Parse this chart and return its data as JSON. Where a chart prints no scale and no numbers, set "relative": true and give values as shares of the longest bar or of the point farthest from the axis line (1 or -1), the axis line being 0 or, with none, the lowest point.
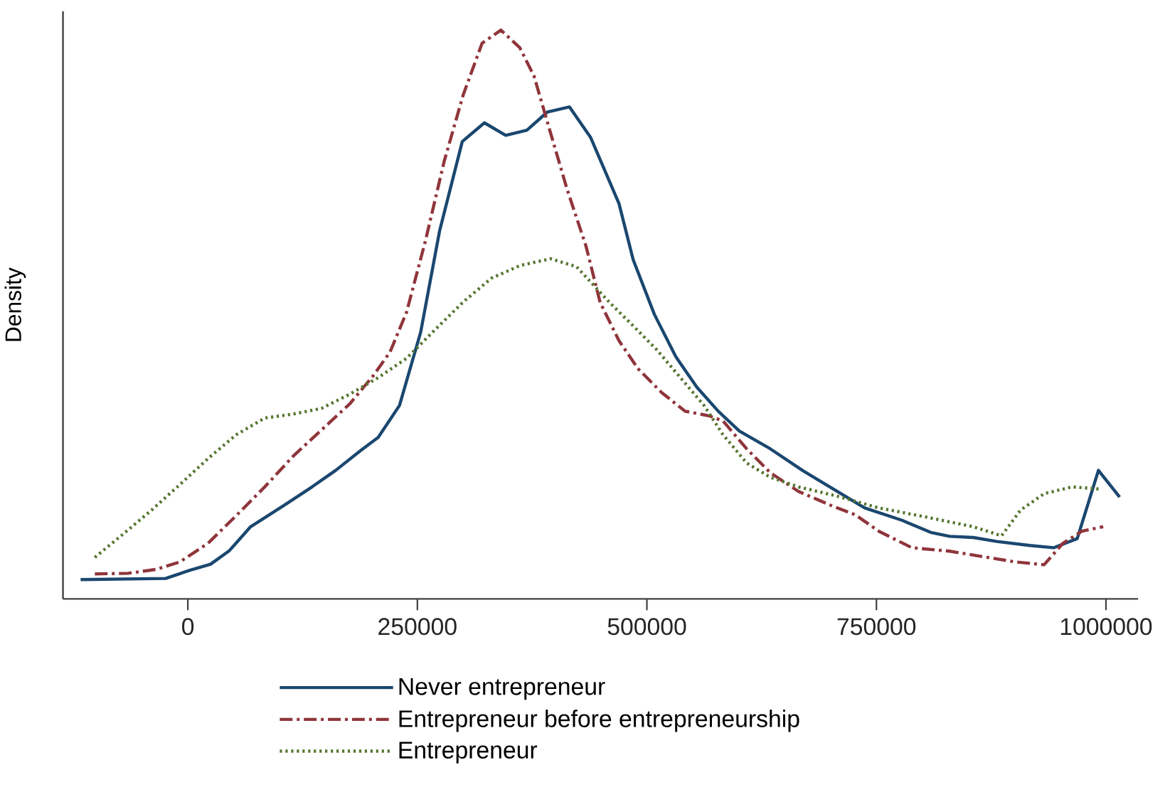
{
  "chart_data": {
    "type": "line",
    "ylabel": "Density",
    "relative": true,
    "xlim": [
      -136000,
      1035000
    ],
    "xticks": [
      0,
      250000,
      500000,
      750000,
      1000000
    ],
    "legend": "bottom",
    "series": [
      {
        "name": "Never entrepreneur",
        "color": "#1a476f",
        "line_style": "solid",
        "x": [
          -116800,
          -24200,
          1500,
          24700,
          45300,
          68400,
          104400,
          135300,
          161000,
          186700,
          207300,
          230500,
          253600,
          274200,
          298900,
          323000,
          346200,
          369300,
          391500,
          415600,
          438800,
          469600,
          485100,
          508200,
          531400,
          554500,
          577700,
          600800,
          634300,
          670300,
          696000,
          737100,
          778300,
          809100,
          829700,
          855400,
          881200,
          917200,
          942900,
          968700,
          991800,
          1014900
        ],
        "values": [
          0.034,
          0.036,
          0.05,
          0.061,
          0.085,
          0.127,
          0.164,
          0.197,
          0.226,
          0.259,
          0.284,
          0.34,
          0.469,
          0.647,
          0.804,
          0.837,
          0.815,
          0.824,
          0.856,
          0.865,
          0.811,
          0.695,
          0.596,
          0.5,
          0.426,
          0.372,
          0.33,
          0.295,
          0.264,
          0.225,
          0.2,
          0.16,
          0.138,
          0.117,
          0.11,
          0.108,
          0.101,
          0.094,
          0.09,
          0.106,
          0.226,
          0.179
        ]
      },
      {
        "name": "Entrepreneur before entrepreneurship",
        "color": "#90353b",
        "line_style": "dashdot",
        "x": [
          -101300,
          -65300,
          -34500,
          -8700,
          22100,
          53000,
          83800,
          114700,
          145600,
          176400,
          202200,
          220200,
          238200,
          258700,
          279300,
          299900,
          320500,
          341000,
          361600,
          377100,
          395100,
          413100,
          433700,
          449100,
          469600,
          490200,
          515900,
          541600,
          567400,
          582800,
          608600,
          634300,
          665100,
          701100,
          726900,
          752600,
          788600,
          829700,
          870900,
          901700,
          932600,
          953200,
          973800,
          997000
        ],
        "values": [
          0.044,
          0.045,
          0.052,
          0.065,
          0.098,
          0.147,
          0.197,
          0.251,
          0.297,
          0.343,
          0.393,
          0.434,
          0.504,
          0.629,
          0.77,
          0.886,
          0.977,
          1.0,
          0.969,
          0.919,
          0.819,
          0.72,
          0.62,
          0.521,
          0.454,
          0.405,
          0.363,
          0.33,
          0.322,
          0.313,
          0.264,
          0.222,
          0.189,
          0.164,
          0.148,
          0.119,
          0.09,
          0.084,
          0.073,
          0.065,
          0.06,
          0.098,
          0.119,
          0.127
        ]
      },
      {
        "name": "Entrepreneur",
        "color": "#55752f",
        "line_style": "dotted",
        "x": [
          -101300,
          -70500,
          -39600,
          -8700,
          22100,
          53000,
          83800,
          114700,
          145600,
          176400,
          207300,
          238200,
          269100,
          299900,
          330800,
          361600,
          395100,
          423400,
          459400,
          485100,
          510800,
          536500,
          562300,
          582800,
          608600,
          634300,
          665100,
          706300,
          752600,
          804000,
          855400,
          886300,
          906900,
          932600,
          963400,
          994300
        ],
        "values": [
          0.073,
          0.114,
          0.156,
          0.201,
          0.247,
          0.289,
          0.318,
          0.325,
          0.335,
          0.36,
          0.389,
          0.423,
          0.473,
          0.522,
          0.564,
          0.586,
          0.598,
          0.584,
          0.521,
          0.48,
          0.438,
          0.389,
          0.34,
          0.289,
          0.239,
          0.214,
          0.197,
          0.181,
          0.16,
          0.144,
          0.127,
          0.111,
          0.156,
          0.185,
          0.197,
          0.193
        ]
      }
    ]
  }
}
